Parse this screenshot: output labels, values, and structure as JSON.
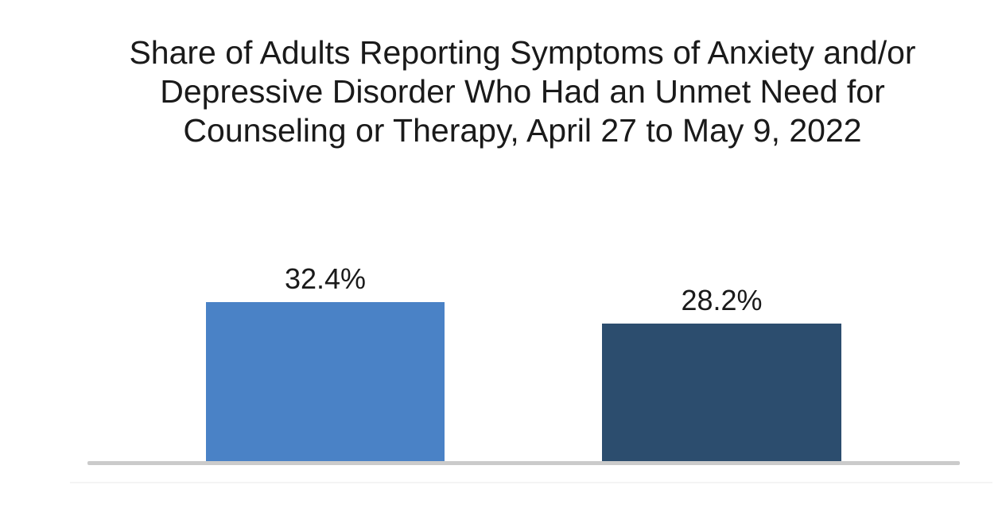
{
  "title": {
    "line1": "Share of Adults Reporting Symptoms of Anxiety and/or",
    "line2": "Depressive Disorder Who Had an Unmet Need for",
    "line3": "Counseling or Therapy, April 27 to May 9, 2022"
  },
  "chart_data": {
    "type": "bar",
    "title": "Share of Adults Reporting Symptoms of Anxiety and/or Depressive Disorder Who Had an Unmet Need for Counseling or Therapy, April 27 to May 9, 2022",
    "values": [
      32.4,
      28.2
    ],
    "data_labels": [
      "32.4%",
      "28.2%"
    ],
    "bar_colors": [
      "#4A82C6",
      "#2C4D6E"
    ],
    "x_tick_labels": [],
    "xlabel": "",
    "ylabel": "",
    "ylim": [
      0,
      35
    ],
    "grid": false,
    "legend": false,
    "y_axis_visible": false,
    "x_axis_line_color": "#CBCBCB",
    "title_color": "#1A1A1A",
    "data_label_color": "#1A1A1A",
    "background_color": "#FFFFFF"
  }
}
